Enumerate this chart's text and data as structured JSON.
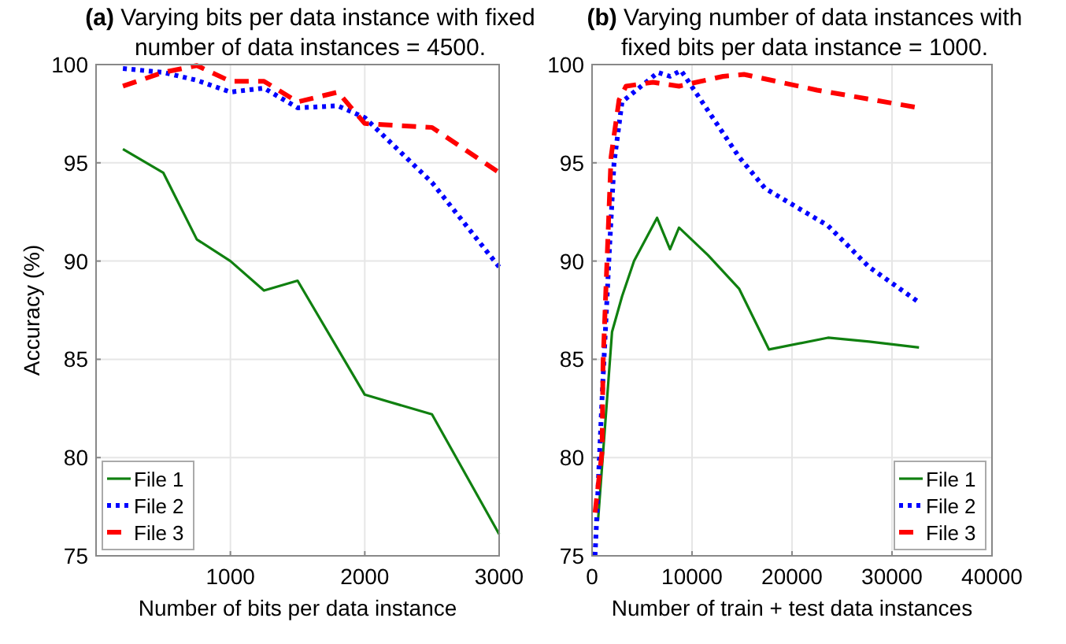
{
  "chart_data": [
    {
      "type": "line",
      "title": "(a) Varying bits per data instance with fixed number of data instances = 4500.",
      "xlabel": "Number of bits per data instance",
      "ylabel": "Accuracy (%)",
      "xlim": [
        0,
        3000
      ],
      "xticks": [
        1000,
        2000,
        3000
      ],
      "ylim": [
        75,
        100
      ],
      "yticks": [
        75,
        80,
        85,
        90,
        95,
        100
      ],
      "grid": true,
      "legend": "bottom left",
      "series": [
        {
          "name": "File 1",
          "color": "#108010",
          "line_style": "solid",
          "x": [
            200,
            500,
            750,
            1000,
            1250,
            1500,
            2000,
            2500,
            3000
          ],
          "values": [
            95.7,
            94.5,
            91.1,
            90.0,
            88.5,
            89.0,
            83.2,
            82.2,
            76.1
          ]
        },
        {
          "name": "File 2",
          "color": "#0000ff",
          "line_style": "dotted",
          "x": [
            200,
            500,
            750,
            1000,
            1250,
            1500,
            1800,
            2000,
            2500,
            3000
          ],
          "values": [
            99.8,
            99.6,
            99.2,
            98.6,
            98.8,
            97.8,
            97.9,
            97.3,
            94.0,
            89.7
          ]
        },
        {
          "name": "File 3",
          "color": "#ff0000",
          "line_style": "dashed",
          "x": [
            200,
            500,
            750,
            1000,
            1250,
            1500,
            1800,
            2000,
            2500,
            3000
          ],
          "values": [
            98.9,
            99.6,
            99.95,
            99.15,
            99.15,
            98.1,
            98.6,
            97.0,
            96.8,
            94.5
          ]
        }
      ]
    },
    {
      "type": "line",
      "title": "(b) Varying number of data instances with fixed bits per data instance = 1000.",
      "xlabel": "Number of train + test data instances",
      "xlim": [
        0,
        40000
      ],
      "xticks": [
        0,
        10000,
        20000,
        30000,
        40000
      ],
      "ylim": [
        75,
        100
      ],
      "yticks": [
        75,
        80,
        85,
        90,
        95,
        100
      ],
      "grid": true,
      "legend": "bottom right",
      "series": [
        {
          "name": "File 1",
          "color": "#108010",
          "line_style": "solid",
          "x": [
            600,
            2000,
            3000,
            4200,
            6500,
            7800,
            8700,
            11600,
            14700,
            17700,
            23600,
            27700,
            32700
          ],
          "values": [
            76.8,
            86.4,
            88.2,
            90.0,
            92.2,
            90.6,
            91.7,
            90.3,
            88.6,
            85.5,
            86.1,
            85.9,
            85.6
          ]
        },
        {
          "name": "File 2",
          "color": "#0000ff",
          "line_style": "dotted",
          "x": [
            300,
            1000,
            1700,
            2200,
            3000,
            6600,
            7800,
            8900,
            14700,
            17300,
            23600,
            27700,
            32700
          ],
          "values": [
            75.0,
            83.0,
            90.2,
            95.0,
            98.1,
            99.6,
            99.4,
            99.7,
            95.3,
            93.7,
            91.8,
            89.7,
            87.9
          ]
        },
        {
          "name": "File 3",
          "color": "#ff0000",
          "line_style": "dashed",
          "x": [
            300,
            1000,
            1100,
            1900,
            2700,
            3400,
            6100,
            8700,
            13100,
            15200,
            22500,
            32700
          ],
          "values": [
            77.2,
            80.3,
            84.8,
            95.3,
            98.2,
            98.9,
            99.1,
            98.9,
            99.4,
            99.5,
            98.7,
            97.8
          ]
        }
      ]
    }
  ]
}
